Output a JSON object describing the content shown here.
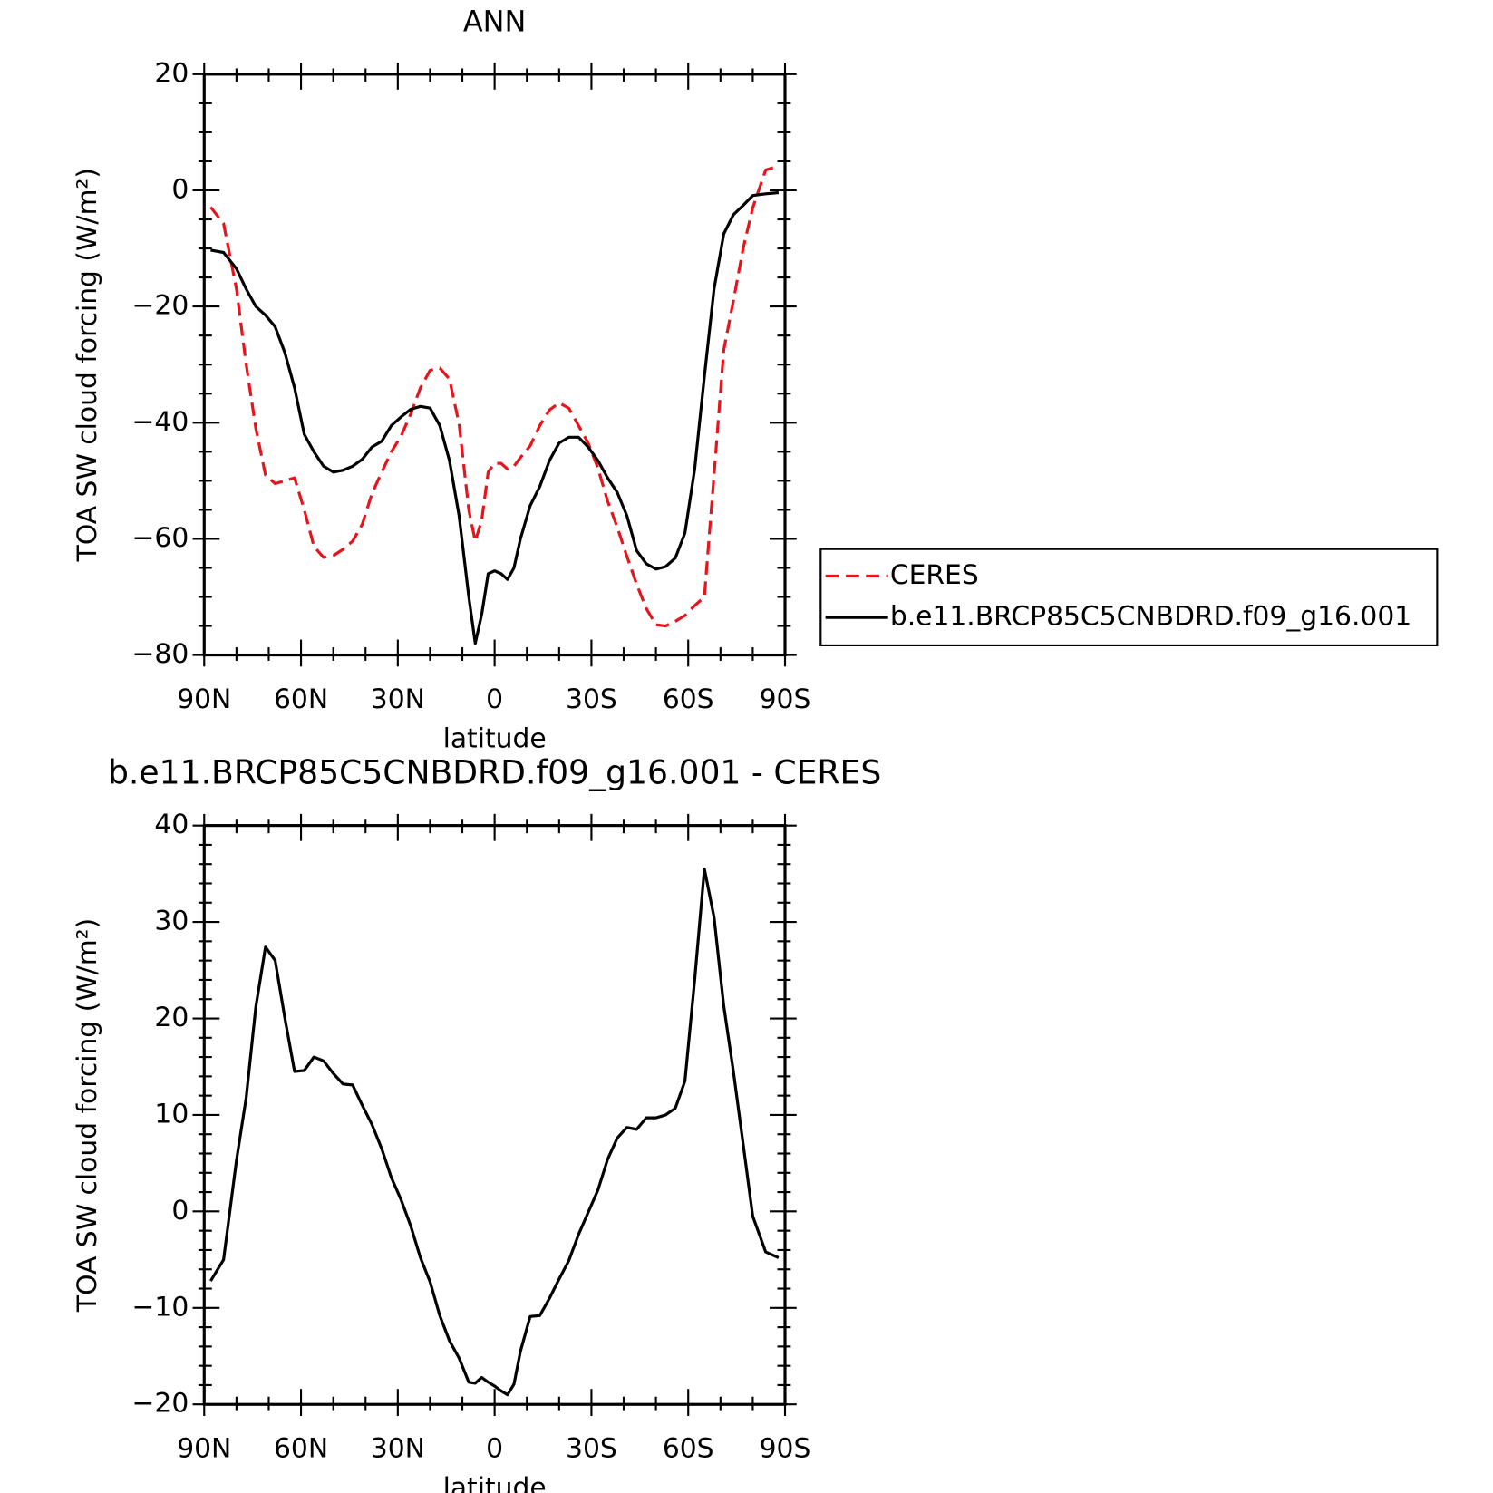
{
  "chart_data": [
    {
      "type": "line",
      "title": "ANN",
      "xlabel": "latitude",
      "ylabel": "TOA SW cloud forcing (W/m²)",
      "x": [
        88,
        84,
        80,
        77,
        74,
        71,
        68,
        65,
        62,
        59,
        56,
        53,
        50,
        47,
        44,
        41,
        38,
        35,
        32,
        29,
        26,
        23,
        20,
        17,
        14,
        11,
        8,
        6,
        4,
        2,
        0,
        -2,
        -4,
        -6,
        -8,
        -11,
        -14,
        -17,
        -20,
        -23,
        -26,
        -29,
        -32,
        -35,
        -38,
        -41,
        -44,
        -47,
        -50,
        -53,
        -56,
        -59,
        -62,
        -65,
        -68,
        -71,
        -74,
        -77,
        -80,
        -84,
        -88
      ],
      "xlim": [
        90,
        -90
      ],
      "xticks": [
        {
          "value": 90,
          "label": "90N"
        },
        {
          "value": 60,
          "label": "60N"
        },
        {
          "value": 30,
          "label": "30N"
        },
        0,
        {
          "value": -30,
          "label": "30S"
        },
        {
          "value": -60,
          "label": "60S"
        },
        {
          "value": -90,
          "label": "90S"
        }
      ],
      "ylim": [
        -80,
        20
      ],
      "yticks": [
        {
          "value": -80,
          "label": "−80"
        },
        {
          "value": -60,
          "label": "−60"
        },
        {
          "value": -40,
          "label": "−40"
        },
        {
          "value": -20,
          "label": "−20"
        },
        0,
        20
      ],
      "legend": "outside-right",
      "series": [
        {
          "name": "CERES",
          "color": "#e8141c",
          "dash": "dashed",
          "values": [
            -2.9,
            -5.7,
            -17,
            -30,
            -41,
            -49,
            -50.5,
            -50,
            -49.5,
            -55,
            -61.3,
            -63.2,
            -62.9,
            -61.8,
            -60.4,
            -57.5,
            -52.2,
            -48.5,
            -45,
            -42.3,
            -38.5,
            -34,
            -31,
            -30.6,
            -32.5,
            -40.2,
            -55,
            -60.4,
            -56.8,
            -48.5,
            -47,
            -47,
            -48,
            -47.5,
            -46,
            -44,
            -40.5,
            -37.8,
            -36.6,
            -37.5,
            -40.5,
            -43.5,
            -47.8,
            -53.5,
            -58,
            -63,
            -67.8,
            -72,
            -74.8,
            -75,
            -74.2,
            -73.2,
            -71.5,
            -70,
            -49,
            -27.5,
            -19,
            -10,
            -3,
            3.5,
            4.2
          ]
        },
        {
          "name": "b.e11.BRCP85C5CNBDRD.f09_g16.001",
          "color": "#000000",
          "dash": "solid",
          "values": [
            -10.3,
            -10.7,
            -13.5,
            -17,
            -20,
            -21.5,
            -23.5,
            -28,
            -34,
            -42,
            -45,
            -47.5,
            -48.5,
            -48.2,
            -47.5,
            -46.3,
            -44.2,
            -43.2,
            -40.5,
            -39,
            -37.7,
            -37.2,
            -37.5,
            -40.5,
            -46.5,
            -56,
            -70,
            -78,
            -73,
            -66,
            -65.5,
            -66,
            -67,
            -65,
            -60,
            -54.3,
            -51,
            -46.5,
            -43.5,
            -42.5,
            -42.5,
            -44.2,
            -46.5,
            -49.5,
            -52,
            -56,
            -62,
            -64.3,
            -65.2,
            -64.8,
            -63.3,
            -59,
            -48,
            -32,
            -17,
            -7.5,
            -4.2,
            -2.6,
            -0.9,
            -0.6,
            -0.4
          ]
        }
      ]
    },
    {
      "type": "line",
      "title": "b.e11.BRCP85C5CNBDRD.f09_g16.001 - CERES",
      "xlabel": "latitude",
      "ylabel": "TOA SW cloud forcing (W/m²)",
      "x": [
        88,
        84,
        80,
        77,
        74,
        71,
        68,
        65,
        62,
        59,
        56,
        53,
        50,
        47,
        44,
        41,
        38,
        35,
        32,
        29,
        26,
        23,
        20,
        17,
        14,
        11,
        8,
        6,
        4,
        2,
        0,
        -2,
        -4,
        -6,
        -8,
        -11,
        -14,
        -17,
        -20,
        -23,
        -26,
        -29,
        -32,
        -35,
        -38,
        -41,
        -44,
        -47,
        -50,
        -53,
        -56,
        -59,
        -62,
        -65,
        -68,
        -71,
        -74,
        -77,
        -80,
        -84,
        -88
      ],
      "xlim": [
        90,
        -90
      ],
      "xticks": [
        {
          "value": 90,
          "label": "90N"
        },
        {
          "value": 60,
          "label": "60N"
        },
        {
          "value": 30,
          "label": "30N"
        },
        0,
        {
          "value": -30,
          "label": "30S"
        },
        {
          "value": -60,
          "label": "60S"
        },
        {
          "value": -90,
          "label": "90S"
        }
      ],
      "ylim": [
        -20,
        40
      ],
      "yticks": [
        {
          "value": -20,
          "label": "−20"
        },
        {
          "value": -10,
          "label": "−10"
        },
        0,
        10,
        20,
        30,
        40
      ],
      "series": [
        {
          "color": "#000000",
          "dash": "solid",
          "values": [
            -7.2,
            -5,
            5.3,
            11.8,
            21.2,
            27.4,
            26,
            20,
            14.5,
            14.6,
            16,
            15.6,
            14.3,
            13.2,
            13.1,
            11,
            9,
            6.5,
            3.5,
            1.2,
            -1.5,
            -4.8,
            -7.3,
            -10.8,
            -13.4,
            -15.2,
            -17.7,
            -17.8,
            -17.2,
            -17.7,
            -18.1,
            -18.6,
            -19,
            -17.9,
            -14.5,
            -10.9,
            -10.8,
            -9,
            -7,
            -5.1,
            -2.4,
            -0.1,
            2.2,
            5.4,
            7.6,
            8.7,
            8.5,
            9.7,
            9.7,
            10,
            10.7,
            13.5,
            24,
            35.5,
            30.5,
            21.3,
            14.5,
            7,
            -0.5,
            -4.2,
            -4.8
          ]
        }
      ]
    }
  ]
}
